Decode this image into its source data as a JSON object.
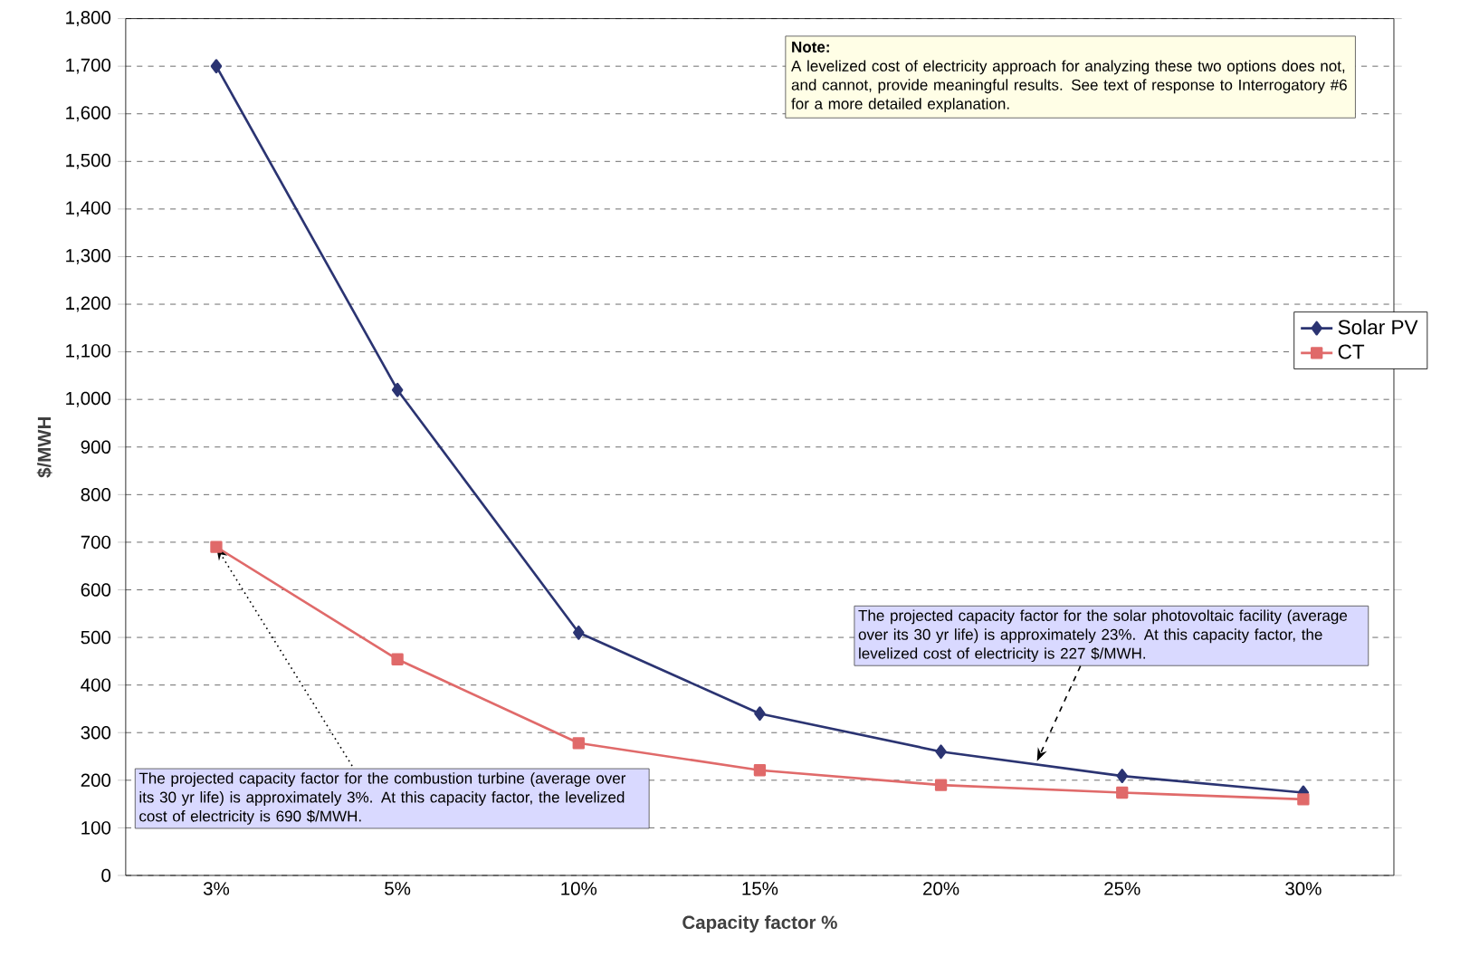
{
  "chart_data": {
    "type": "line",
    "xlabel": "Capacity factor %",
    "ylabel": "$/MWH",
    "categories": [
      "3%",
      "5%",
      "10%",
      "15%",
      "20%",
      "25%",
      "30%"
    ],
    "series": [
      {
        "name": "Solar PV",
        "color": "#2b3472",
        "marker": "diamond",
        "values": [
          1700,
          1020,
          510,
          340,
          260,
          209,
          174
        ]
      },
      {
        "name": "CT",
        "color": "#e06a6a",
        "marker": "square",
        "values": [
          690,
          454,
          278,
          221,
          190,
          174,
          160
        ]
      }
    ],
    "ylim": [
      0,
      1800
    ],
    "yticks": [
      0,
      100,
      200,
      300,
      400,
      500,
      600,
      700,
      800,
      900,
      {
        "value": 1000,
        "label": "1,000"
      },
      {
        "value": 1100,
        "label": "1,100"
      },
      {
        "value": 1200,
        "label": "1,200"
      },
      {
        "value": 1300,
        "label": "1,300"
      },
      {
        "value": 1400,
        "label": "1,400"
      },
      {
        "value": 1500,
        "label": "1,500"
      },
      {
        "value": 1600,
        "label": "1,600"
      },
      {
        "value": 1700,
        "label": "1,700"
      },
      {
        "value": 1800,
        "label": "1,800"
      }
    ],
    "grid": "y",
    "line_style": "solid",
    "legend": "right",
    "annotations": [
      "**Note:**",
      "A levelized cost of electricity approach for analyzing these two options does not, and cannot, provide meaningful results. See text of response to Interrogatory #6 for a more detailed explanation.",
      {
        "text": "The projected capacity factor for the combustion turbine (average over its 30 yr life) is approximately 3%. At this capacity factor, the levelized cost of electricity is 690 $/MWH.",
        "x": "3%",
        "y": 690
      },
      "The projected capacity factor for the solar photovoltaic facility (average over its 30 yr life) is approximately 23%. At this capacity factor, the levelized cost of electricity is 227 $/MWH."
    ]
  }
}
